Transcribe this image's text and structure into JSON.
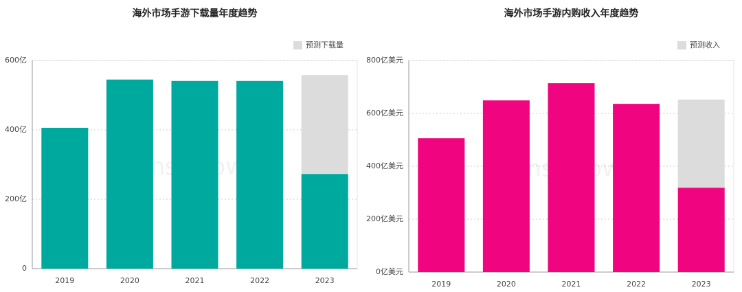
{
  "chart_data": [
    {
      "type": "bar",
      "stacked": true,
      "title": "海外市场手游下载量年度趋势",
      "watermark": "SensorTower",
      "categories": [
        "2019",
        "2020",
        "2021",
        "2022",
        "2023"
      ],
      "series": [
        {
          "color": "#00a99d",
          "values": [
            406,
            545,
            541,
            541,
            273
          ]
        },
        {
          "name": "预测下载量",
          "color": "#dcdcdc",
          "values": [
            null,
            null,
            null,
            null,
            285
          ]
        }
      ],
      "ylim": [
        0,
        600
      ],
      "yticks": [
        0,
        {
          "value": 200,
          "label": "200亿"
        },
        {
          "value": 400,
          "label": "400亿"
        },
        {
          "value": 600,
          "label": "600亿"
        }
      ],
      "grid": true,
      "legend": "top-right"
    },
    {
      "type": "bar",
      "stacked": true,
      "title": "海外市场手游内购收入年度趋势",
      "watermark": "SensorTower",
      "categories": [
        "2019",
        "2020",
        "2021",
        "2022",
        "2023"
      ],
      "series": [
        {
          "color": "#f0047f",
          "values": [
            506,
            649,
            714,
            636,
            319
          ]
        },
        {
          "name": "预测收入",
          "color": "#dcdcdc",
          "values": [
            null,
            null,
            null,
            null,
            333
          ]
        }
      ],
      "ylim": [
        0,
        800
      ],
      "yticks": [
        {
          "value": 0,
          "label": "0亿美元"
        },
        {
          "value": 200,
          "label": "200亿美元"
        },
        {
          "value": 400,
          "label": "400亿美元"
        },
        {
          "value": 600,
          "label": "600亿美元"
        },
        {
          "value": 800,
          "label": "800亿美元"
        }
      ],
      "grid": true,
      "legend": "top-right"
    }
  ]
}
